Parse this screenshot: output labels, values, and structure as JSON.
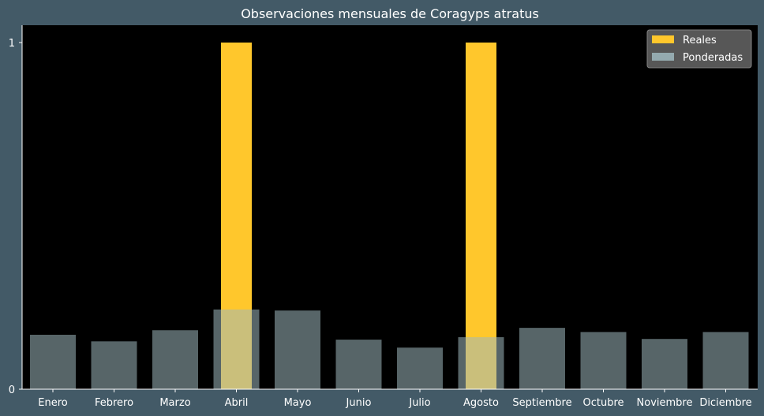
{
  "chart_data": {
    "type": "bar",
    "title": "Observaciones mensuales de Coragyps atratus",
    "xlabel": "",
    "ylabel": "",
    "categories": [
      "Enero",
      "Febrero",
      "Marzo",
      "Abril",
      "Mayo",
      "Junio",
      "Julio",
      "Agosto",
      "Septiembre",
      "Octubre",
      "Noviembre",
      "Diciembre"
    ],
    "ylim": [
      0,
      1.05
    ],
    "yticks": [
      "0",
      "1"
    ],
    "grid": false,
    "legend_position": "top-right",
    "series": [
      {
        "name": "Reales",
        "color": "#ffc72c",
        "values": [
          0,
          0,
          0,
          1,
          0,
          0,
          0,
          1,
          0,
          0,
          0,
          0
        ]
      },
      {
        "name": "Ponderadas",
        "color": "#9fb8be",
        "values": [
          0.157,
          0.138,
          0.17,
          0.23,
          0.227,
          0.143,
          0.12,
          0.15,
          0.177,
          0.165,
          0.145,
          0.165
        ]
      }
    ],
    "plot_background": "#000000",
    "figure_background": "#435a67"
  }
}
